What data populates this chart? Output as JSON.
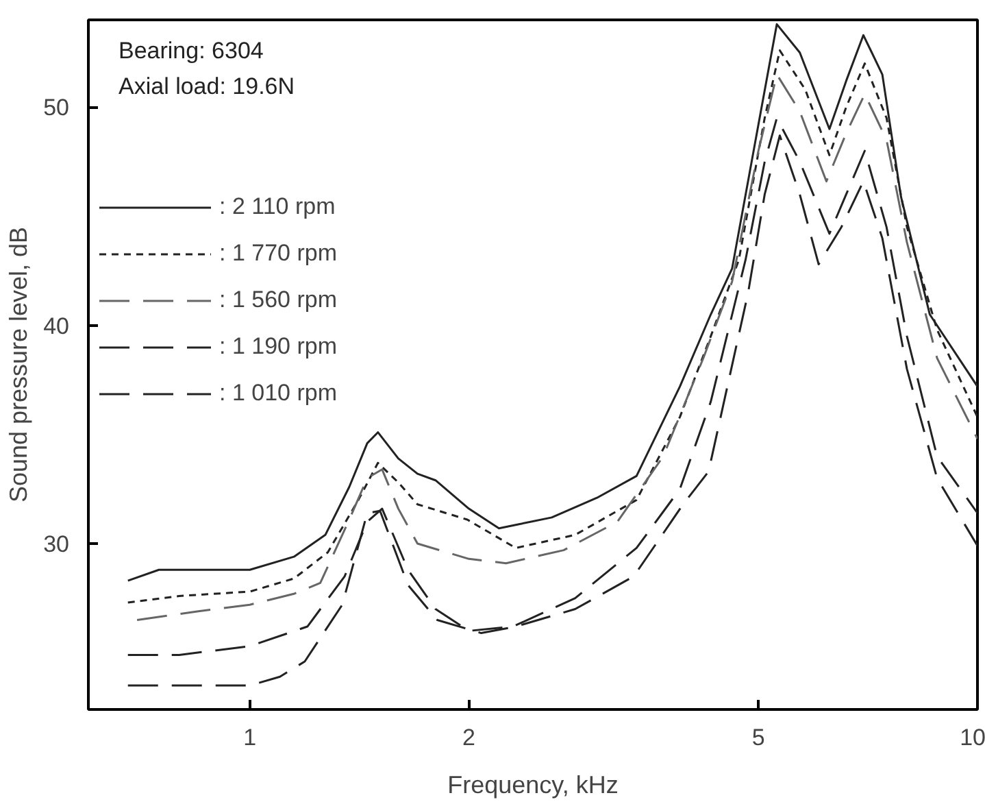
{
  "chart_data": {
    "type": "line",
    "xlabel": "Frequency, kHz",
    "ylabel": "Sound pressure level, dB",
    "annotations": [
      "Bearing:     6304",
      "Axial load:  19.6N"
    ],
    "log": "x",
    "xlim": [
      0.6,
      10
    ],
    "xticks": [
      1,
      2,
      5,
      10
    ],
    "ylim": [
      22.4,
      54
    ],
    "yticks": [
      30,
      40,
      50
    ],
    "grid": false,
    "legend": "top left",
    "series": [
      {
        "name": ": 2 110 rpm",
        "color": "#222222",
        "line_style": "solid",
        "x": [
          0.68,
          0.75,
          0.9,
          1.0,
          1.15,
          1.27,
          1.37,
          1.45,
          1.5,
          1.6,
          1.7,
          1.8,
          2.0,
          2.2,
          2.6,
          3.0,
          3.4,
          3.9,
          4.3,
          4.6,
          5.0,
          5.3,
          5.7,
          6.26,
          6.6,
          6.97,
          7.4,
          7.85,
          8.6,
          10.0
        ],
        "values": [
          28.3,
          28.8,
          28.8,
          28.8,
          29.4,
          30.4,
          32.6,
          34.6,
          35.1,
          33.9,
          33.2,
          32.9,
          31.6,
          30.7,
          31.2,
          32.1,
          33.1,
          37.2,
          40.5,
          42.6,
          49.2,
          53.8,
          52.5,
          49.0,
          51.2,
          53.3,
          51.5,
          45.9,
          40.5,
          37.2
        ]
      },
      {
        "name": ": 1 770 rpm",
        "color": "#222222",
        "line_style": "dotted",
        "x": [
          0.68,
          0.8,
          1.0,
          1.15,
          1.28,
          1.41,
          1.5,
          1.6,
          1.7,
          1.99,
          2.32,
          2.8,
          3.4,
          3.9,
          4.3,
          4.7,
          5.1,
          5.35,
          5.8,
          6.26,
          6.6,
          7.0,
          7.5,
          8.0,
          8.8,
          10.0
        ],
        "values": [
          27.3,
          27.6,
          27.8,
          28.4,
          29.6,
          32.0,
          33.7,
          32.8,
          31.8,
          31.1,
          29.8,
          30.4,
          32.0,
          35.8,
          39.5,
          43.0,
          49.5,
          52.6,
          50.8,
          47.8,
          50.0,
          52.0,
          49.5,
          44.5,
          39.8,
          35.8
        ]
      },
      {
        "name": ": 1 560 rpm",
        "color": "#666666",
        "line_style": "dashed",
        "x": [
          0.7,
          0.85,
          1.0,
          1.15,
          1.25,
          1.37,
          1.45,
          1.52,
          1.6,
          1.7,
          2.0,
          2.25,
          2.7,
          3.2,
          3.7,
          4.2,
          4.6,
          5.0,
          5.3,
          5.7,
          6.2,
          6.6,
          7.0,
          7.5,
          8.0,
          8.8,
          10.0
        ],
        "values": [
          26.5,
          26.9,
          27.2,
          27.7,
          28.2,
          31.1,
          33.0,
          33.4,
          31.6,
          30.0,
          29.3,
          29.1,
          29.7,
          31.0,
          34.0,
          38.5,
          42.0,
          48.0,
          51.5,
          49.8,
          46.6,
          48.8,
          50.6,
          48.5,
          43.8,
          38.5,
          34.8
        ]
      },
      {
        "name": ": 1 190 rpm",
        "color": "#222222",
        "line_style": "dashed",
        "x": [
          0.68,
          0.8,
          1.0,
          1.2,
          1.35,
          1.45,
          1.52,
          1.65,
          1.8,
          2.0,
          2.3,
          2.8,
          3.4,
          3.9,
          4.3,
          4.8,
          5.1,
          5.3,
          5.7,
          6.26,
          6.6,
          7.0,
          7.5,
          8.0,
          8.8,
          10.0
        ],
        "values": [
          24.9,
          24.9,
          25.3,
          26.2,
          28.5,
          31.0,
          31.6,
          28.8,
          27.0,
          26.0,
          26.2,
          27.5,
          29.8,
          32.5,
          36.5,
          43.0,
          47.5,
          49.5,
          47.5,
          44.2,
          46.0,
          48.0,
          44.5,
          39.5,
          34.0,
          31.4
        ]
      },
      {
        "name": ": 1 010 rpm",
        "color": "#222222",
        "line_style": "dashed",
        "x": [
          0.68,
          0.8,
          1.0,
          1.1,
          1.19,
          1.34,
          1.45,
          1.51,
          1.65,
          1.81,
          2.08,
          2.32,
          2.8,
          3.37,
          3.94,
          4.27,
          4.84,
          5.1,
          5.35,
          5.7,
          6.05,
          6.5,
          6.97,
          7.4,
          8.0,
          8.8,
          10.0
        ],
        "values": [
          23.5,
          23.5,
          23.5,
          23.9,
          24.6,
          27.2,
          31.4,
          31.5,
          28.1,
          26.5,
          25.9,
          26.2,
          27.0,
          28.5,
          31.8,
          33.3,
          41.5,
          46.0,
          48.7,
          46.0,
          42.8,
          44.5,
          46.6,
          44.0,
          38.0,
          33.0,
          29.9
        ]
      }
    ]
  }
}
